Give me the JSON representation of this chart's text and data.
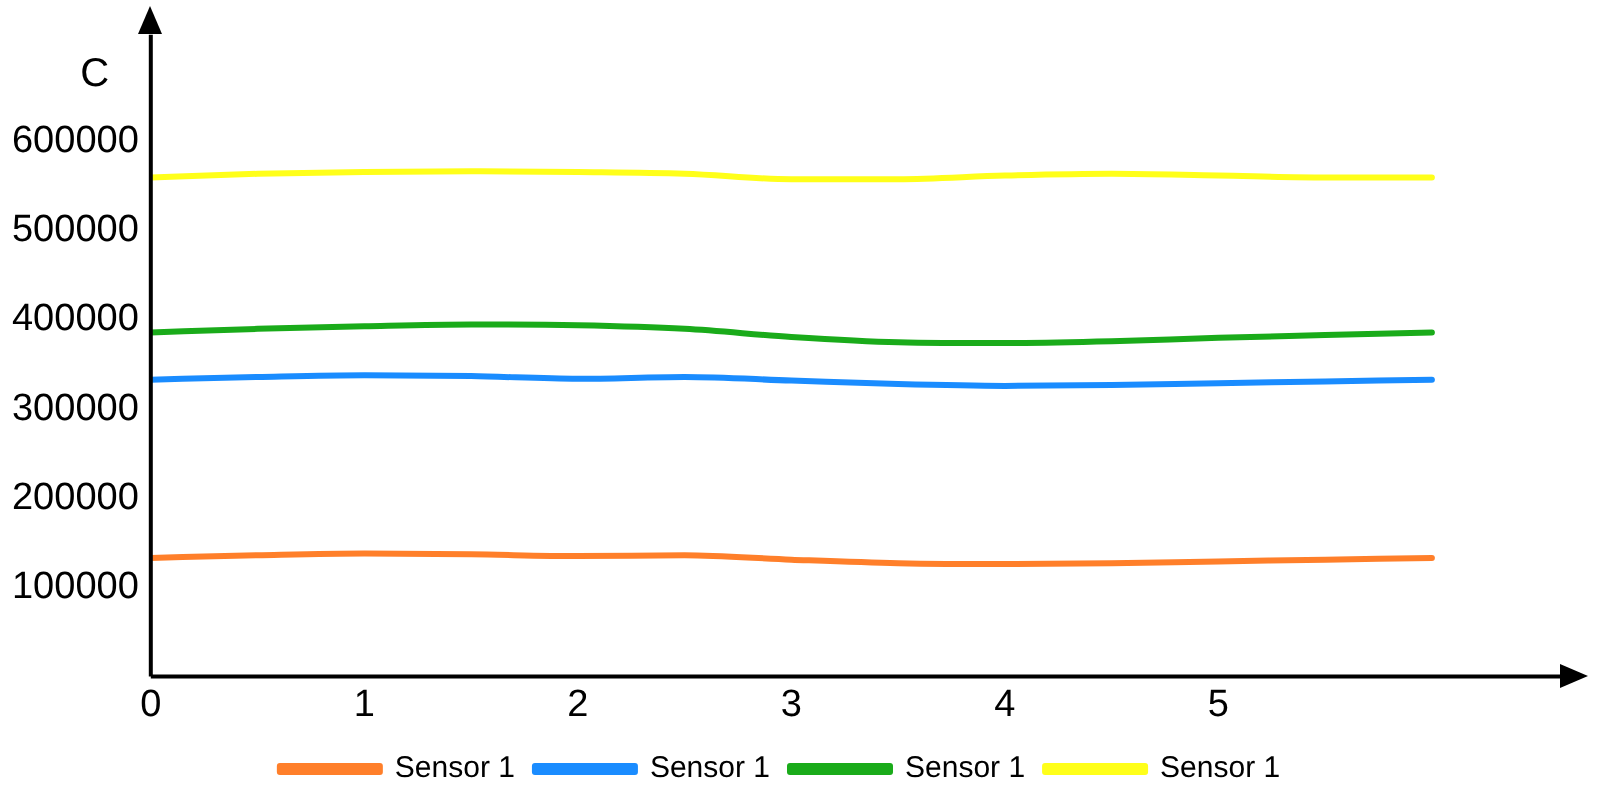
{
  "chart_data": {
    "type": "line",
    "ylabel": "C",
    "x": [
      0,
      0.5,
      1,
      1.5,
      2,
      2.5,
      3,
      3.5,
      4,
      4.5,
      5,
      5.5,
      6
    ],
    "xlim": [
      0,
      6.6
    ],
    "xticks": [
      0,
      1,
      2,
      3,
      4,
      5
    ],
    "ylim": [
      0,
      720000
    ],
    "yticks": [
      100000,
      200000,
      300000,
      400000,
      500000,
      600000
    ],
    "grid": false,
    "legend": "bottom",
    "marker": "none",
    "line_style": "solid",
    "series": [
      {
        "name": "Sensor 1",
        "color": "#ff7f2a",
        "values": [
          133000,
          136000,
          138000,
          137000,
          135000,
          136000,
          131000,
          127000,
          126000,
          127000,
          129000,
          131000,
          133000
        ]
      },
      {
        "name": "Sensor 1",
        "color": "#1a8cff",
        "values": [
          333000,
          336000,
          338000,
          337000,
          334000,
          336000,
          332000,
          328000,
          326000,
          327000,
          329000,
          331000,
          333000
        ]
      },
      {
        "name": "Sensor 1",
        "color": "#1aab1a",
        "values": [
          386000,
          390000,
          393000,
          395000,
          394000,
          390000,
          381000,
          375000,
          374000,
          376000,
          380000,
          383000,
          386000
        ]
      },
      {
        "name": "Sensor 1",
        "color": "#ffff1a",
        "values": [
          560000,
          564000,
          566000,
          567000,
          566000,
          564000,
          558000,
          558000,
          562000,
          564000,
          562000,
          560000,
          560000
        ]
      }
    ]
  }
}
